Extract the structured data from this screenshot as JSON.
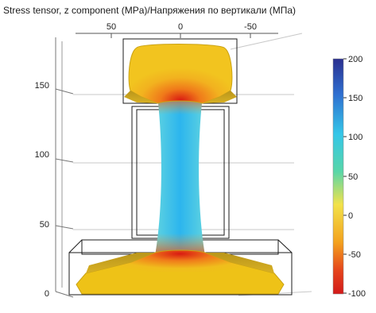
{
  "plot": {
    "title": "Stress tensor, z component (MPa)/Напряжения по вертикали (МПа)"
  },
  "axes": {
    "top_ticks": [
      "50",
      "0",
      "-50"
    ],
    "left_ticks": [
      "150",
      "100",
      "50",
      "0"
    ]
  },
  "colorbar": {
    "ticks": [
      "200",
      "150",
      "100",
      "50",
      "0",
      "-50",
      "-100"
    ],
    "colors": [
      "#2a2f8f",
      "#2f8fd8",
      "#34c6e8",
      "#58d6a8",
      "#f2e24a",
      "#f3a21e",
      "#e5451c",
      "#d21a1a"
    ]
  },
  "colors": {
    "web": "#36bde6",
    "head": "#f0c21f",
    "base": "#eec217",
    "high_stress": "#e23a1a",
    "wire": "#1b1b1b"
  }
}
